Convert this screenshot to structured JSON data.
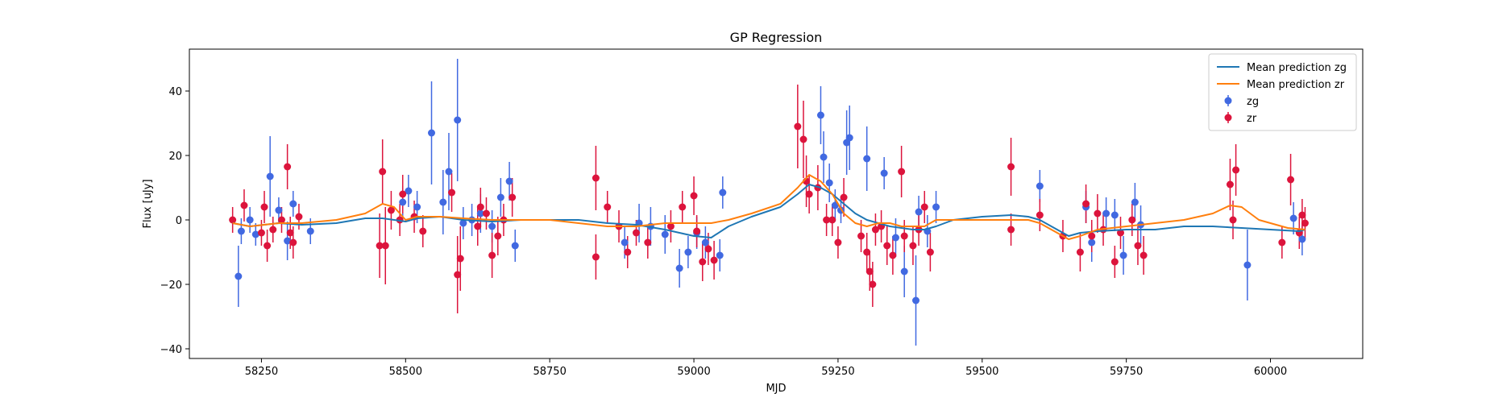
{
  "chart_data": {
    "type": "scatter",
    "title": "GP Regression",
    "xlabel": "MJD",
    "ylabel": "Flux [uJy]",
    "xlim": [
      58125,
      60160
    ],
    "ylim": [
      -43,
      53
    ],
    "x_ticks": [
      58250,
      58500,
      58750,
      59000,
      59250,
      59500,
      59750,
      60000
    ],
    "y_ticks": [
      -40,
      -20,
      0,
      20,
      40
    ],
    "grid": false,
    "legend": {
      "placement": "top-right"
    },
    "series": [
      {
        "name": "Mean prediction zg",
        "kind": "line",
        "color": "#1f77b4",
        "x": [
          58200,
          58230,
          58280,
          58320,
          58380,
          58430,
          58460,
          58480,
          58500,
          58520,
          58560,
          58600,
          58650,
          58700,
          58750,
          58800,
          58850,
          58900,
          58950,
          59000,
          59030,
          59060,
          59100,
          59150,
          59180,
          59200,
          59220,
          59240,
          59260,
          59280,
          59300,
          59320,
          59340,
          59360,
          59380,
          59400,
          59420,
          59450,
          59500,
          59550,
          59580,
          59600,
          59630,
          59650,
          59670,
          59700,
          59750,
          59800,
          59850,
          59900,
          59950,
          60000,
          60050,
          60060
        ],
        "y": [
          -1,
          -2,
          -1,
          -1.5,
          -1,
          0.5,
          0.5,
          0,
          -0.5,
          0.5,
          1,
          0,
          -0.5,
          0,
          0,
          0,
          -1,
          -1.5,
          -3,
          -5,
          -5.5,
          -2,
          1,
          4,
          8,
          11,
          10,
          8,
          5,
          2,
          0,
          -1,
          -2,
          -2.5,
          -3,
          -3,
          -2,
          0,
          1,
          1.5,
          1,
          0,
          -3,
          -5,
          -4,
          -3.5,
          -3,
          -3,
          -2,
          -2,
          -2.5,
          -3,
          -3.5,
          -3
        ]
      },
      {
        "name": "Mean prediction zr",
        "kind": "line",
        "color": "#ff7f0e",
        "x": [
          58200,
          58230,
          58280,
          58320,
          58380,
          58430,
          58460,
          58480,
          58500,
          58520,
          58560,
          58600,
          58650,
          58700,
          58750,
          58800,
          58850,
          58900,
          58950,
          59000,
          59030,
          59060,
          59100,
          59150,
          59180,
          59200,
          59220,
          59240,
          59260,
          59280,
          59300,
          59320,
          59340,
          59360,
          59380,
          59400,
          59420,
          59450,
          59500,
          59550,
          59580,
          59600,
          59630,
          59650,
          59670,
          59700,
          59750,
          59800,
          59850,
          59900,
          59930,
          59950,
          59980,
          60000,
          60030,
          60060
        ],
        "y": [
          -1,
          -2,
          -1,
          -1,
          0,
          2,
          5,
          4,
          0,
          1,
          1,
          0.5,
          0,
          0,
          0,
          -1,
          -2,
          -2,
          -1,
          -1,
          -1,
          0,
          2,
          5,
          10,
          14,
          12,
          8,
          2,
          -1,
          -2,
          -1,
          -1,
          -2,
          -2,
          -2,
          0,
          0,
          0,
          0,
          0,
          -1,
          -4,
          -6,
          -5,
          -3,
          -2,
          -1,
          0,
          2,
          4.5,
          4,
          0,
          -1,
          -2.5,
          -3
        ]
      },
      {
        "name": "zg",
        "kind": "errorbar",
        "color": "#4169e1",
        "points": [
          [
            58210,
            -17.5,
            9.5
          ],
          [
            58215,
            -3.5,
            4
          ],
          [
            58230,
            0,
            4
          ],
          [
            58240,
            -4.5,
            3.5
          ],
          [
            58265,
            13.5,
            12.5
          ],
          [
            58280,
            3,
            4
          ],
          [
            58295,
            -6.5,
            6
          ],
          [
            58305,
            5,
            4
          ],
          [
            58335,
            -3.5,
            4
          ],
          [
            58495,
            5.5,
            5
          ],
          [
            58505,
            9,
            5
          ],
          [
            58520,
            4,
            5
          ],
          [
            58545,
            27,
            16
          ],
          [
            58565,
            5.5,
            10
          ],
          [
            58575,
            15,
            12
          ],
          [
            58590,
            31,
            19
          ],
          [
            58600,
            -1,
            5
          ],
          [
            58615,
            0,
            5
          ],
          [
            58630,
            2,
            6
          ],
          [
            58650,
            -2,
            5
          ],
          [
            58665,
            7,
            6
          ],
          [
            58680,
            12,
            6
          ],
          [
            58690,
            -8,
            5
          ],
          [
            58880,
            -7,
            5
          ],
          [
            58905,
            -1,
            6
          ],
          [
            58925,
            -2,
            6
          ],
          [
            58950,
            -4.5,
            6
          ],
          [
            58975,
            -15,
            6
          ],
          [
            58990,
            -10,
            5
          ],
          [
            59005,
            -4,
            5
          ],
          [
            59020,
            -7,
            5
          ],
          [
            59045,
            -11,
            5
          ],
          [
            59050,
            8.5,
            5
          ],
          [
            59220,
            32.5,
            9
          ],
          [
            59225,
            19.5,
            8
          ],
          [
            59235,
            11.5,
            6
          ],
          [
            59245,
            4.5,
            5
          ],
          [
            59255,
            3,
            4
          ],
          [
            59265,
            24,
            10
          ],
          [
            59270,
            25.5,
            10
          ],
          [
            59300,
            19,
            10
          ],
          [
            59330,
            14.5,
            5
          ],
          [
            59350,
            -5.5,
            6
          ],
          [
            59365,
            -16,
            8
          ],
          [
            59385,
            -25,
            14
          ],
          [
            59390,
            2.5,
            5
          ],
          [
            59405,
            -3.5,
            5
          ],
          [
            59420,
            4,
            5
          ],
          [
            59600,
            10.5,
            5
          ],
          [
            59680,
            4,
            5
          ],
          [
            59690,
            -7,
            6
          ],
          [
            59715,
            2,
            5
          ],
          [
            59730,
            1.5,
            5
          ],
          [
            59745,
            -11,
            6
          ],
          [
            59765,
            5.5,
            6
          ],
          [
            59775,
            -1.5,
            6
          ],
          [
            59960,
            -14,
            11
          ],
          [
            60040,
            0.5,
            5
          ],
          [
            60055,
            -6,
            5
          ]
        ]
      },
      {
        "name": "zr",
        "kind": "errorbar",
        "color": "#dc143c",
        "points": [
          [
            58200,
            0,
            4
          ],
          [
            58220,
            4.5,
            5
          ],
          [
            58250,
            -4,
            4
          ],
          [
            58255,
            4,
            5
          ],
          [
            58260,
            -8,
            5
          ],
          [
            58270,
            -3,
            4
          ],
          [
            58285,
            0,
            4
          ],
          [
            58295,
            16.5,
            7
          ],
          [
            58300,
            -4,
            5
          ],
          [
            58305,
            -7,
            5
          ],
          [
            58315,
            1,
            4
          ],
          [
            58455,
            -8,
            10
          ],
          [
            58460,
            15,
            10
          ],
          [
            58465,
            -8,
            12
          ],
          [
            58475,
            3,
            6
          ],
          [
            58490,
            0,
            5
          ],
          [
            58495,
            8,
            6
          ],
          [
            58515,
            1,
            5
          ],
          [
            58530,
            -3.5,
            5
          ],
          [
            58580,
            8.5,
            6
          ],
          [
            58590,
            -17,
            12
          ],
          [
            58595,
            -12,
            10
          ],
          [
            58625,
            -2,
            6
          ],
          [
            58630,
            4,
            6
          ],
          [
            58640,
            2,
            5
          ],
          [
            58650,
            -11,
            7
          ],
          [
            58660,
            -5,
            6
          ],
          [
            58670,
            0,
            5
          ],
          [
            58685,
            7,
            6
          ],
          [
            58830,
            13,
            10
          ],
          [
            58830,
            -11.5,
            7
          ],
          [
            58850,
            4,
            5
          ],
          [
            58870,
            -2,
            5
          ],
          [
            58885,
            -10,
            5
          ],
          [
            58900,
            -4,
            4
          ],
          [
            58920,
            -7,
            5
          ],
          [
            58960,
            -2,
            5
          ],
          [
            58980,
            4,
            5
          ],
          [
            59000,
            7.5,
            6
          ],
          [
            59005,
            -3.5,
            5
          ],
          [
            59015,
            -13,
            6
          ],
          [
            59025,
            -9,
            5
          ],
          [
            59035,
            -12.5,
            6
          ],
          [
            59180,
            29,
            13
          ],
          [
            59190,
            25,
            12
          ],
          [
            59195,
            12,
            8
          ],
          [
            59200,
            8,
            6
          ],
          [
            59215,
            10,
            7
          ],
          [
            59230,
            0,
            5
          ],
          [
            59240,
            0,
            5
          ],
          [
            59250,
            -7,
            5
          ],
          [
            59260,
            7,
            6
          ],
          [
            59290,
            -5,
            5
          ],
          [
            59300,
            -10,
            6
          ],
          [
            59305,
            -16,
            6
          ],
          [
            59310,
            -20,
            7
          ],
          [
            59315,
            -3,
            5
          ],
          [
            59325,
            -2,
            5
          ],
          [
            59335,
            -8,
            6
          ],
          [
            59345,
            -11,
            6
          ],
          [
            59360,
            15,
            8
          ],
          [
            59365,
            -5,
            5
          ],
          [
            59380,
            -8,
            6
          ],
          [
            59390,
            -3,
            5
          ],
          [
            59400,
            4,
            5
          ],
          [
            59410,
            -10,
            6
          ],
          [
            59550,
            16.5,
            9
          ],
          [
            59550,
            -3,
            5
          ],
          [
            59600,
            1.5,
            5
          ],
          [
            59640,
            -5,
            5
          ],
          [
            59670,
            -10,
            6
          ],
          [
            59680,
            5,
            6
          ],
          [
            59690,
            -5,
            5
          ],
          [
            59700,
            2,
            6
          ],
          [
            59710,
            -3,
            5
          ],
          [
            59730,
            -13,
            5
          ],
          [
            59740,
            -4,
            5
          ],
          [
            59760,
            0,
            5
          ],
          [
            59770,
            -8,
            6
          ],
          [
            59780,
            -11,
            6
          ],
          [
            59930,
            11,
            8
          ],
          [
            59935,
            0,
            6
          ],
          [
            59940,
            15.5,
            8
          ],
          [
            60020,
            -7,
            5
          ],
          [
            60035,
            12.5,
            8
          ],
          [
            60050,
            -4,
            5
          ],
          [
            60055,
            1.5,
            5
          ],
          [
            60060,
            -1,
            5
          ]
        ]
      }
    ]
  }
}
